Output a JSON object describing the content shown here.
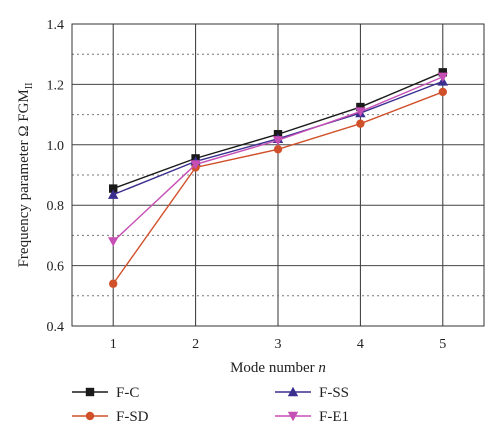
{
  "chart_data": {
    "type": "line",
    "x": [
      1,
      2,
      3,
      4,
      5
    ],
    "xlim": [
      0.5,
      5.5
    ],
    "ylim": [
      0.4,
      1.4
    ],
    "xticks": [
      "1",
      "2",
      "3",
      "4",
      "5"
    ],
    "yticks": [
      "0.4",
      "0.6",
      "0.8",
      "1.0",
      "1.2",
      "1.4"
    ],
    "xlabel": {
      "main": "Mode number ",
      "var": "n"
    },
    "ylabel": {
      "main": "Frequency parameter Ω FGM",
      "sub": "II"
    },
    "grid": true,
    "legend_position": "bottom",
    "series": [
      {
        "name": "F-C",
        "values": [
          0.855,
          0.955,
          1.035,
          1.125,
          1.24
        ],
        "color": "#1a1a1a",
        "marker": "square"
      },
      {
        "name": "F-SS",
        "values": [
          0.835,
          0.945,
          1.02,
          1.105,
          1.21
        ],
        "color": "#3a2f8f",
        "marker": "triangle-up"
      },
      {
        "name": "F-SD",
        "values": [
          0.54,
          0.925,
          0.985,
          1.07,
          1.175
        ],
        "color": "#d0502a",
        "marker": "circle"
      },
      {
        "name": "F-E1",
        "values": [
          0.68,
          0.935,
          1.015,
          1.11,
          1.225
        ],
        "color": "#c64fb5",
        "marker": "triangle-down"
      }
    ]
  }
}
